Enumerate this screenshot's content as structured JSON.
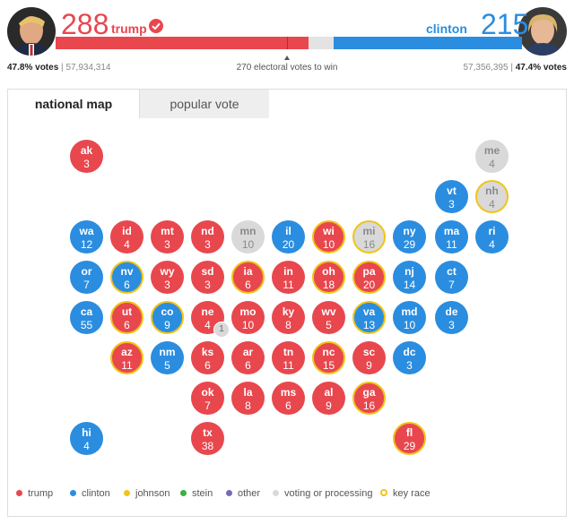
{
  "header": {
    "trump": {
      "count": "288",
      "name": "trump",
      "pct": "47.8% votes",
      "votes": "57,934,314"
    },
    "clinton": {
      "count": "215",
      "name": "clinton",
      "pct": "47.4% votes",
      "votes": "57,356,395"
    },
    "threshold_text": "270 electoral votes to win",
    "separator": "|"
  },
  "tabs": {
    "national": "national map",
    "popular": "popular vote"
  },
  "states": {
    "ak": {
      "ab": "ak",
      "ev": "3"
    },
    "me": {
      "ab": "me",
      "ev": "4"
    },
    "vt": {
      "ab": "vt",
      "ev": "3"
    },
    "nh": {
      "ab": "nh",
      "ev": "4"
    },
    "wa": {
      "ab": "wa",
      "ev": "12"
    },
    "id": {
      "ab": "id",
      "ev": "4"
    },
    "mt": {
      "ab": "mt",
      "ev": "3"
    },
    "nd": {
      "ab": "nd",
      "ev": "3"
    },
    "mn": {
      "ab": "mn",
      "ev": "10"
    },
    "il": {
      "ab": "il",
      "ev": "20"
    },
    "wi": {
      "ab": "wi",
      "ev": "10"
    },
    "mi": {
      "ab": "mi",
      "ev": "16"
    },
    "ny": {
      "ab": "ny",
      "ev": "29"
    },
    "ma": {
      "ab": "ma",
      "ev": "11"
    },
    "ri": {
      "ab": "ri",
      "ev": "4"
    },
    "or": {
      "ab": "or",
      "ev": "7"
    },
    "nv": {
      "ab": "nv",
      "ev": "6"
    },
    "wy": {
      "ab": "wy",
      "ev": "3"
    },
    "sd": {
      "ab": "sd",
      "ev": "3"
    },
    "ia": {
      "ab": "ia",
      "ev": "6"
    },
    "in": {
      "ab": "in",
      "ev": "11"
    },
    "oh": {
      "ab": "oh",
      "ev": "18"
    },
    "pa": {
      "ab": "pa",
      "ev": "20"
    },
    "nj": {
      "ab": "nj",
      "ev": "14"
    },
    "ct": {
      "ab": "ct",
      "ev": "7"
    },
    "ca": {
      "ab": "ca",
      "ev": "55"
    },
    "ut": {
      "ab": "ut",
      "ev": "6"
    },
    "co": {
      "ab": "co",
      "ev": "9"
    },
    "ne": {
      "ab": "ne",
      "ev": "4",
      "badge": "1"
    },
    "mo": {
      "ab": "mo",
      "ev": "10"
    },
    "ky": {
      "ab": "ky",
      "ev": "8"
    },
    "wv": {
      "ab": "wv",
      "ev": "5"
    },
    "va": {
      "ab": "va",
      "ev": "13"
    },
    "md": {
      "ab": "md",
      "ev": "10"
    },
    "de": {
      "ab": "de",
      "ev": "3"
    },
    "az": {
      "ab": "az",
      "ev": "11"
    },
    "nm": {
      "ab": "nm",
      "ev": "5"
    },
    "ks": {
      "ab": "ks",
      "ev": "6"
    },
    "ar": {
      "ab": "ar",
      "ev": "6"
    },
    "tn": {
      "ab": "tn",
      "ev": "11"
    },
    "nc": {
      "ab": "nc",
      "ev": "15"
    },
    "sc": {
      "ab": "sc",
      "ev": "9"
    },
    "dc": {
      "ab": "dc",
      "ev": "3"
    },
    "ok": {
      "ab": "ok",
      "ev": "7"
    },
    "la": {
      "ab": "la",
      "ev": "8"
    },
    "ms": {
      "ab": "ms",
      "ev": "6"
    },
    "al": {
      "ab": "al",
      "ev": "9"
    },
    "ga": {
      "ab": "ga",
      "ev": "16"
    },
    "hi": {
      "ab": "hi",
      "ev": "4"
    },
    "tx": {
      "ab": "tx",
      "ev": "38"
    },
    "fl": {
      "ab": "fl",
      "ev": "29"
    }
  },
  "legend": {
    "trump": "trump",
    "clinton": "clinton",
    "johnson": "johnson",
    "stein": "stein",
    "other": "other",
    "processing": "voting or processing",
    "key": "key race"
  },
  "colors": {
    "trump": "#e8474e",
    "clinton": "#2a8de0",
    "johnson": "#f0c419",
    "stein": "#3cb043",
    "other": "#7b68b5",
    "processing": "#d9d9d9",
    "key_race": "#f0c419"
  },
  "icons": {
    "check": "check-icon",
    "triangle": "triangle-up-icon"
  },
  "bar": {
    "trump_share": 0.533,
    "clinton_share": 0.398,
    "threshold": 0.5
  }
}
